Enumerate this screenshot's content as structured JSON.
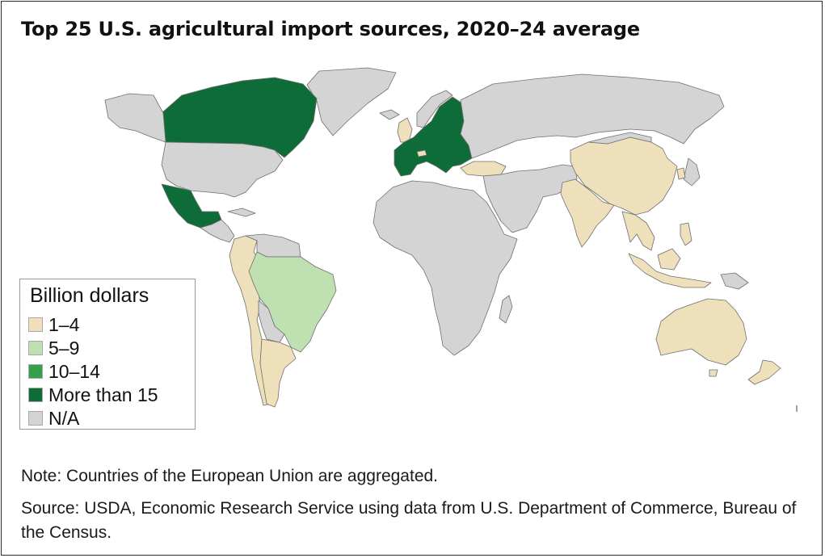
{
  "title": "Top 25 U.S. agricultural import sources, 2020–24 average",
  "legend": {
    "title": "Billion dollars",
    "items": [
      {
        "label": "1–4",
        "color": "#efe0bc"
      },
      {
        "label": "5–9",
        "color": "#bfe0b0"
      },
      {
        "label": "10–14",
        "color": "#33a04e"
      },
      {
        "label": "More than 15",
        "color": "#0e6c38"
      },
      {
        "label": "N/A",
        "color": "#d4d4d4"
      }
    ]
  },
  "colors": {
    "low": "#efe0bc",
    "mid": "#bfe0b0",
    "high": "#33a04e",
    "top": "#0e6c38",
    "na": "#d4d4d4",
    "border": "#6f6f6f"
  },
  "note": "Note: Countries of the European Union are aggregated.",
  "source": "Source: USDA, Economic Research Service using data from U.S. Department of Commerce, Bureau of the Census."
}
